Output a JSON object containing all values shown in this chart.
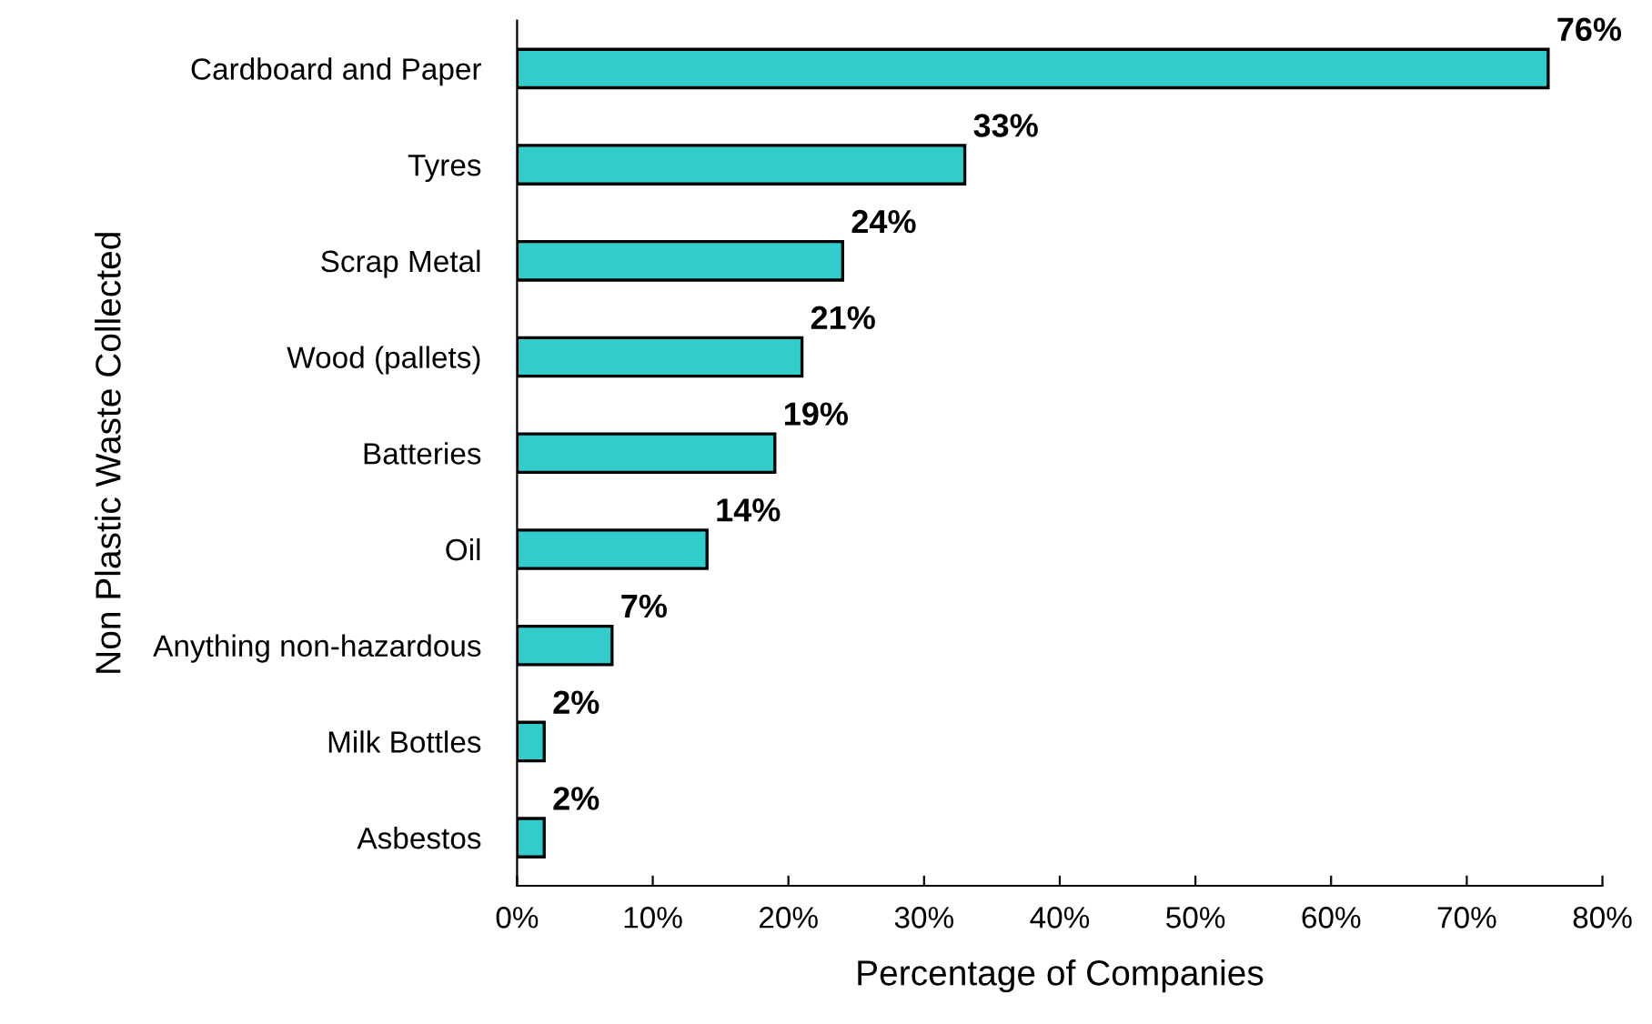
{
  "chart_data": {
    "type": "bar",
    "orientation": "horizontal",
    "xlabel": "Percentage of Companies",
    "ylabel": "Non Plastic Waste Collected",
    "categories": [
      "Cardboard and Paper",
      "Tyres",
      "Scrap Metal",
      "Wood (pallets)",
      "Batteries",
      "Oil",
      "Anything non-hazardous",
      "Milk Bottles",
      "Asbestos"
    ],
    "values": [
      76,
      33,
      24,
      21,
      19,
      14,
      7,
      2,
      2
    ],
    "value_labels": [
      "76%",
      "33%",
      "24%",
      "21%",
      "19%",
      "14%",
      "7%",
      "2%",
      "2%"
    ],
    "color": "#33cccc",
    "xlim": [
      0,
      80
    ],
    "xticks": [
      {
        "value": 0,
        "label": "0%"
      },
      {
        "value": 10,
        "label": "10%"
      },
      {
        "value": 20,
        "label": "20%"
      },
      {
        "value": 30,
        "label": "30%"
      },
      {
        "value": 40,
        "label": "40%"
      },
      {
        "value": 50,
        "label": "50%"
      },
      {
        "value": 60,
        "label": "60%"
      },
      {
        "value": 70,
        "label": "70%"
      },
      {
        "value": 80,
        "label": "80%"
      }
    ],
    "grid": false,
    "legend": false
  }
}
